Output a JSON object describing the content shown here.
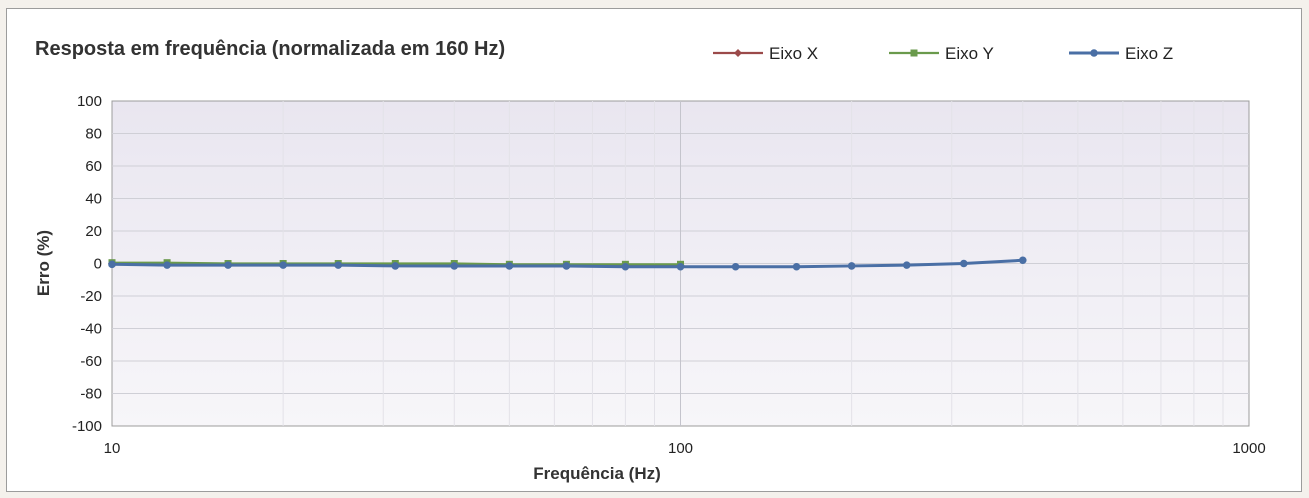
{
  "chart_data": {
    "type": "line",
    "title": "Resposta em frequência (normalizada em 160 Hz)",
    "xlabel": "Frequência (Hz)",
    "ylabel": "Erro (%)",
    "x_scale": "log",
    "xlim": [
      10,
      1000
    ],
    "ylim": [
      -100,
      100
    ],
    "x_ticks": [
      10,
      100,
      1000
    ],
    "x_tick_labels": [
      "10",
      "100",
      "1000"
    ],
    "y_ticks": [
      -100,
      -80,
      -60,
      -40,
      -20,
      0,
      20,
      40,
      60,
      80,
      100
    ],
    "y_tick_labels": [
      "-100",
      "-80",
      "-60",
      "-40",
      "-20",
      "0",
      "20",
      "40",
      "60",
      "80",
      "100"
    ],
    "grid": true,
    "legend_position": "top",
    "series": [
      {
        "name": "Eixo X",
        "color": "#9b4a4a",
        "marker": "diamond",
        "x": [
          10,
          12.5,
          16,
          20,
          25,
          31.5,
          40,
          50,
          63,
          80,
          100
        ],
        "y": [
          0,
          0,
          -0.5,
          -0.5,
          -0.5,
          -0.5,
          -0.5,
          -1,
          -1,
          -1,
          -1
        ]
      },
      {
        "name": "Eixo Y",
        "color": "#6a9a4c",
        "marker": "square",
        "x": [
          10,
          12.5,
          16,
          20,
          25,
          31.5,
          40,
          50,
          63,
          80,
          100
        ],
        "y": [
          0.5,
          0.5,
          0,
          0,
          0,
          0,
          0,
          -0.5,
          -0.5,
          -0.5,
          -0.5
        ]
      },
      {
        "name": "Eixo Z",
        "color": "#4a6fa5",
        "marker": "circle",
        "x": [
          10,
          12.5,
          16,
          20,
          25,
          31.5,
          40,
          50,
          63,
          80,
          100,
          125,
          160,
          200,
          250,
          315,
          400
        ],
        "y": [
          -0.5,
          -1,
          -1,
          -1,
          -1,
          -1.5,
          -1.5,
          -1.5,
          -1.5,
          -2,
          -2,
          -2,
          -2,
          -1.5,
          -1,
          0,
          2
        ]
      }
    ]
  }
}
